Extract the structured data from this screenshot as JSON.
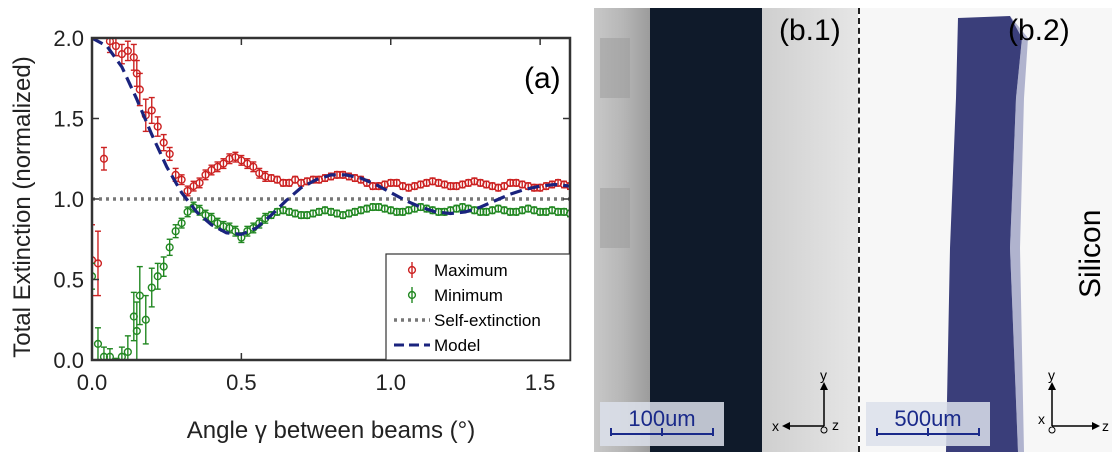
{
  "chart_data": {
    "type": "scatter",
    "panel_label": "(a)",
    "xlabel": "Angle γ between beams (°)",
    "ylabel": "Total Extinction (normalized)",
    "xlim": [
      0,
      1.6
    ],
    "ylim": [
      0,
      2.0
    ],
    "xticks": [
      "0.0",
      "0.5",
      "1.0",
      "1.5"
    ],
    "yticks": [
      "0.0",
      "0.5",
      "1.0",
      "1.5",
      "2.0"
    ],
    "legend_position": "bottom-right",
    "series": [
      {
        "name": "Maximum",
        "color": "#cc2222",
        "x": [
          0.0,
          0.02,
          0.04,
          0.06,
          0.08,
          0.1,
          0.12,
          0.14,
          0.15,
          0.16,
          0.18,
          0.2,
          0.22,
          0.24,
          0.26,
          0.28,
          0.3,
          0.32,
          0.34,
          0.36,
          0.38,
          0.4,
          0.42,
          0.44,
          0.46,
          0.48,
          0.5,
          0.52,
          0.54,
          0.56,
          0.58,
          0.6,
          0.62,
          0.64,
          0.66,
          0.68,
          0.7,
          0.72,
          0.74,
          0.76,
          0.78,
          0.8,
          0.82,
          0.84,
          0.86,
          0.88,
          0.9,
          0.92,
          0.94,
          0.96,
          0.98,
          1.0,
          1.02,
          1.04,
          1.06,
          1.08,
          1.1,
          1.12,
          1.14,
          1.16,
          1.18,
          1.2,
          1.22,
          1.24,
          1.26,
          1.28,
          1.3,
          1.32,
          1.34,
          1.36,
          1.38,
          1.4,
          1.42,
          1.44,
          1.46,
          1.48,
          1.5,
          1.52,
          1.54,
          1.56,
          1.58,
          1.6
        ],
        "y": [
          0.62,
          0.6,
          1.25,
          1.98,
          1.95,
          1.9,
          1.92,
          1.88,
          1.78,
          1.68,
          1.52,
          1.55,
          1.45,
          1.35,
          1.28,
          1.15,
          1.12,
          1.05,
          1.08,
          1.1,
          1.15,
          1.18,
          1.2,
          1.22,
          1.25,
          1.26,
          1.24,
          1.22,
          1.2,
          1.16,
          1.14,
          1.13,
          1.12,
          1.1,
          1.1,
          1.12,
          1.1,
          1.11,
          1.12,
          1.12,
          1.13,
          1.14,
          1.15,
          1.15,
          1.14,
          1.13,
          1.12,
          1.1,
          1.08,
          1.08,
          1.09,
          1.1,
          1.1,
          1.08,
          1.07,
          1.08,
          1.09,
          1.1,
          1.11,
          1.1,
          1.09,
          1.08,
          1.08,
          1.09,
          1.1,
          1.11,
          1.1,
          1.09,
          1.08,
          1.07,
          1.08,
          1.1,
          1.1,
          1.09,
          1.08,
          1.07,
          1.07,
          1.08,
          1.09,
          1.1,
          1.09,
          1.08
        ],
        "err": [
          0.22,
          0.2,
          0.07,
          0.07,
          0.06,
          0.06,
          0.06,
          0.08,
          0.08,
          0.1,
          0.1,
          0.08,
          0.06,
          0.05,
          0.04,
          0.04,
          0.03,
          0.03,
          0.03,
          0.03,
          0.03,
          0.03,
          0.03,
          0.03,
          0.03,
          0.03,
          0.03,
          0.03,
          0.03,
          0.03,
          0.03,
          0.02,
          0.02,
          0.02,
          0.02,
          0.02,
          0.02,
          0.02,
          0.02,
          0.02,
          0.02,
          0.02,
          0.02,
          0.02,
          0.02,
          0.02,
          0.02,
          0.02,
          0.02,
          0.02,
          0.02,
          0.02,
          0.02,
          0.02,
          0.02,
          0.02,
          0.02,
          0.02,
          0.02,
          0.02,
          0.02,
          0.02,
          0.02,
          0.02,
          0.02,
          0.02,
          0.02,
          0.02,
          0.02,
          0.02,
          0.02,
          0.02,
          0.02,
          0.02,
          0.02,
          0.02,
          0.02,
          0.02,
          0.02,
          0.02,
          0.02,
          0.02
        ]
      },
      {
        "name": "Minimum",
        "color": "#228822",
        "x": [
          0.0,
          0.02,
          0.04,
          0.06,
          0.08,
          0.1,
          0.12,
          0.14,
          0.15,
          0.16,
          0.18,
          0.2,
          0.22,
          0.24,
          0.26,
          0.28,
          0.3,
          0.32,
          0.34,
          0.36,
          0.38,
          0.4,
          0.42,
          0.44,
          0.46,
          0.48,
          0.5,
          0.52,
          0.54,
          0.56,
          0.58,
          0.6,
          0.62,
          0.64,
          0.66,
          0.68,
          0.7,
          0.72,
          0.74,
          0.76,
          0.78,
          0.8,
          0.82,
          0.84,
          0.86,
          0.88,
          0.9,
          0.92,
          0.94,
          0.96,
          0.98,
          1.0,
          1.02,
          1.04,
          1.06,
          1.08,
          1.1,
          1.12,
          1.14,
          1.16,
          1.18,
          1.2,
          1.22,
          1.24,
          1.26,
          1.28,
          1.3,
          1.32,
          1.34,
          1.36,
          1.38,
          1.4,
          1.42,
          1.44,
          1.46,
          1.48,
          1.5,
          1.52,
          1.54,
          1.56,
          1.58,
          1.6
        ],
        "y": [
          0.52,
          0.1,
          0.02,
          0.02,
          -0.05,
          0.02,
          0.05,
          0.27,
          0.18,
          0.4,
          0.25,
          0.45,
          0.52,
          0.58,
          0.7,
          0.8,
          0.85,
          0.92,
          0.95,
          0.93,
          0.9,
          0.88,
          0.85,
          0.83,
          0.82,
          0.8,
          0.76,
          0.8,
          0.82,
          0.85,
          0.88,
          0.9,
          0.92,
          0.93,
          0.92,
          0.91,
          0.9,
          0.9,
          0.91,
          0.92,
          0.93,
          0.92,
          0.91,
          0.9,
          0.91,
          0.92,
          0.93,
          0.94,
          0.95,
          0.95,
          0.94,
          0.93,
          0.92,
          0.92,
          0.93,
          0.94,
          0.95,
          0.94,
          0.93,
          0.92,
          0.92,
          0.93,
          0.94,
          0.95,
          0.94,
          0.93,
          0.92,
          0.92,
          0.93,
          0.94,
          0.93,
          0.92,
          0.92,
          0.93,
          0.94,
          0.93,
          0.92,
          0.92,
          0.93,
          0.92,
          0.92,
          0.91
        ],
        "err": [
          0.08,
          0.1,
          0.06,
          0.05,
          0.06,
          0.06,
          0.1,
          0.15,
          0.18,
          0.18,
          0.15,
          0.12,
          0.08,
          0.06,
          0.05,
          0.04,
          0.03,
          0.03,
          0.03,
          0.03,
          0.03,
          0.03,
          0.03,
          0.03,
          0.03,
          0.03,
          0.03,
          0.03,
          0.03,
          0.03,
          0.03,
          0.02,
          0.02,
          0.02,
          0.02,
          0.02,
          0.02,
          0.02,
          0.02,
          0.02,
          0.02,
          0.02,
          0.02,
          0.02,
          0.02,
          0.02,
          0.02,
          0.02,
          0.02,
          0.02,
          0.02,
          0.02,
          0.02,
          0.02,
          0.02,
          0.02,
          0.02,
          0.02,
          0.02,
          0.02,
          0.02,
          0.02,
          0.02,
          0.02,
          0.02,
          0.02,
          0.02,
          0.02,
          0.02,
          0.02,
          0.02,
          0.02,
          0.02,
          0.02,
          0.02,
          0.02,
          0.02,
          0.02,
          0.02,
          0.02,
          0.02,
          0.02
        ]
      },
      {
        "name": "Self-extinction",
        "color": "#777777",
        "style": "dotted",
        "x": [
          0.0,
          1.6
        ],
        "y": [
          1.0,
          1.0
        ]
      },
      {
        "name": "Model",
        "color": "#1a237e",
        "style": "dashed",
        "x": [
          0.0,
          0.05,
          0.1,
          0.15,
          0.2,
          0.25,
          0.3,
          0.35,
          0.4,
          0.45,
          0.5,
          0.55,
          0.6,
          0.65,
          0.7,
          0.75,
          0.8,
          0.85,
          0.9,
          0.95,
          1.0,
          1.05,
          1.1,
          1.15,
          1.2,
          1.25,
          1.3,
          1.35,
          1.4,
          1.45,
          1.5,
          1.55,
          1.6
        ],
        "y": [
          2.0,
          1.95,
          1.82,
          1.62,
          1.4,
          1.2,
          1.04,
          0.92,
          0.84,
          0.79,
          0.78,
          0.82,
          0.9,
          0.99,
          1.07,
          1.12,
          1.15,
          1.15,
          1.13,
          1.09,
          1.04,
          0.99,
          0.95,
          0.92,
          0.91,
          0.92,
          0.95,
          0.99,
          1.03,
          1.06,
          1.08,
          1.09,
          1.08
        ]
      }
    ]
  },
  "micrographs": {
    "b1": {
      "label": "(b.1)",
      "scalebar": "100um",
      "axes": {
        "y": "y",
        "x": "x",
        "z": "z"
      }
    },
    "b2": {
      "label": "(b.2)",
      "scalebar": "500um",
      "material": "Silicon",
      "axes": {
        "y": "y",
        "x": "x",
        "z": "z"
      }
    }
  },
  "colors": {
    "maximum": "#cc2222",
    "minimum": "#228822",
    "model": "#1a237e",
    "self_extinction": "#777777",
    "scalebar": "#1a2a8a"
  }
}
